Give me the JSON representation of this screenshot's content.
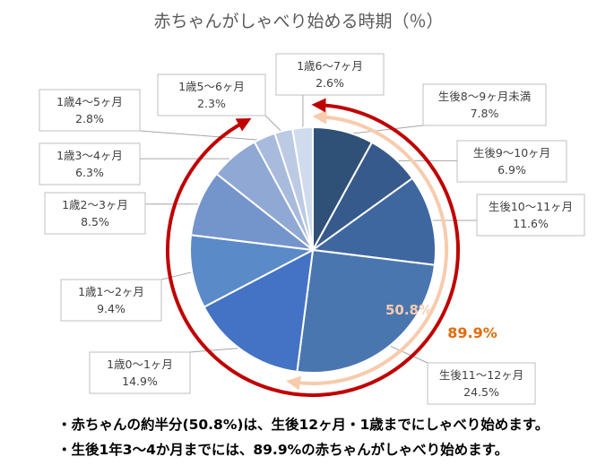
{
  "chart_data": {
    "type": "pie",
    "title": "赤ちゃんがしゃべり始める時期（％）",
    "categories": [
      "生後8～9ヶ月未満",
      "生後9～10ヶ月",
      "生後10～11ヶ月",
      "生後11～12ヶ月",
      "1歳0～1ヶ月",
      "1歳1～2ヶ月",
      "1歳2～3ヶ月",
      "1歳3～4ヶ月",
      "1歳4～5ヶ月",
      "1歳5～6ヶ月",
      "1歳6～7ヶ月"
    ],
    "values": [
      7.8,
      6.9,
      11.6,
      24.5,
      14.9,
      9.4,
      8.5,
      6.3,
      2.8,
      2.3,
      2.6
    ],
    "value_labels": [
      "7.8%",
      "6.9%",
      "11.6%",
      "24.5%",
      "14.9%",
      "9.4%",
      "8.5%",
      "6.3%",
      "2.8%",
      "2.3%",
      "2.6%"
    ],
    "colors": [
      "#2f5077",
      "#365a8c",
      "#3e67a0",
      "#4a76b0",
      "#4472c4",
      "#5b8ac8",
      "#7494cc",
      "#8fa8d4",
      "#a8bbdc",
      "#bccae4",
      "#d0dbee"
    ],
    "cumulative_annotations": [
      {
        "label": "50.8%",
        "color": "#f8cbad"
      },
      {
        "label": "89.9%",
        "color": "#e26b0a"
      }
    ],
    "arc_colors": {
      "inner": "#f8cbad",
      "outer": "#c00000"
    }
  },
  "notes": [
    "・赤ちゃんの約半分(50.8%)は、生後12ヶ月・1歳までにしゃべり始めます。",
    "・生後1年3～4か月までには、89.9%の赤ちゃんがしゃべり始めます。"
  ]
}
